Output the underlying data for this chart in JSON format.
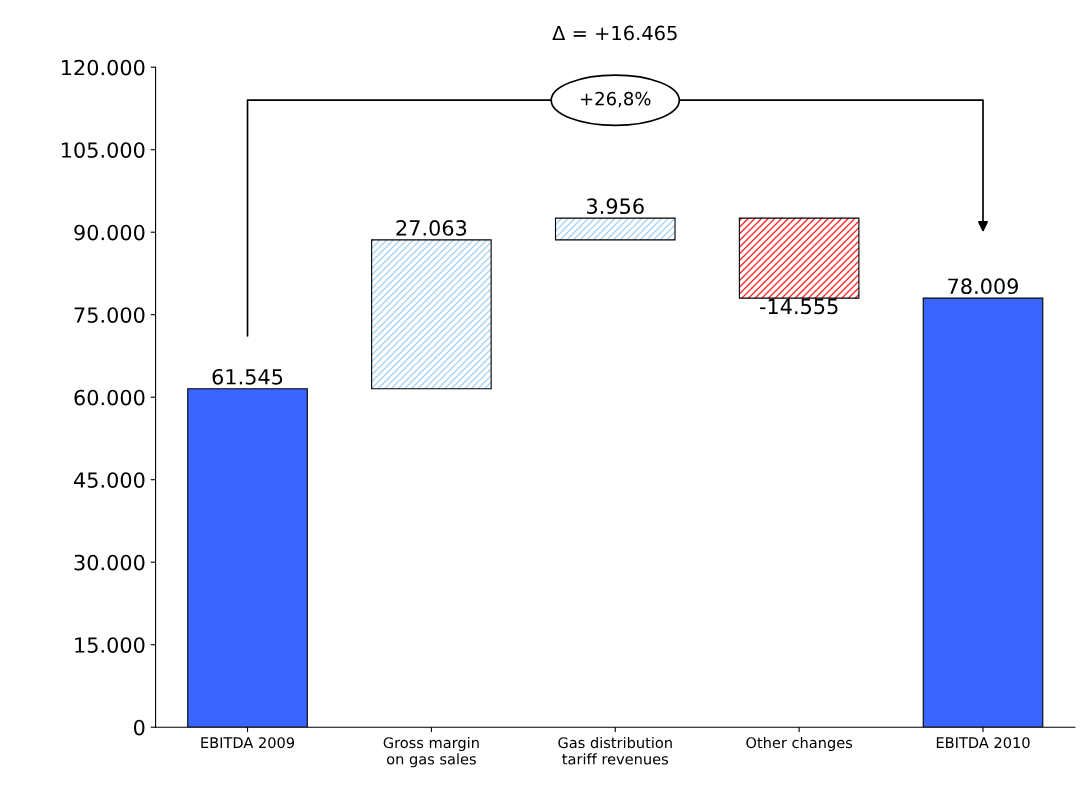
{
  "chart_data": {
    "type": "bar",
    "categories": [
      "EBITDA 2009",
      "Gross margin\non gas sales",
      "Gas distribution\ntariff revenues",
      "Other changes",
      "EBITDA 2010"
    ],
    "values": [
      61545,
      27063,
      3956,
      -14555,
      78009
    ],
    "base": [
      0,
      61545,
      88608,
      92564,
      0
    ],
    "colors": [
      "#3a66ff",
      "#a9d3f5",
      "#a9d3f5",
      "#ff2a2a",
      "#3a66ff"
    ],
    "value_labels": [
      "61.545",
      "27.063",
      "3.956",
      "-14.555",
      "78.009"
    ],
    "ylim": [
      0,
      120000
    ],
    "yticks": [
      {
        "value": 0,
        "label": "0"
      },
      {
        "value": 15000,
        "label": "15.000"
      },
      {
        "value": 30000,
        "label": "30.000"
      },
      {
        "value": 45000,
        "label": "45.000"
      },
      {
        "value": 60000,
        "label": "60.000"
      },
      {
        "value": 75000,
        "label": "75.000"
      },
      {
        "value": 90000,
        "label": "90.000"
      },
      {
        "value": 105000,
        "label": "105.000"
      },
      {
        "value": 120000,
        "label": "120.000"
      }
    ],
    "annotations": [
      "Δ = +16.465",
      "+26,8%"
    ],
    "grid": false,
    "legend": false
  }
}
